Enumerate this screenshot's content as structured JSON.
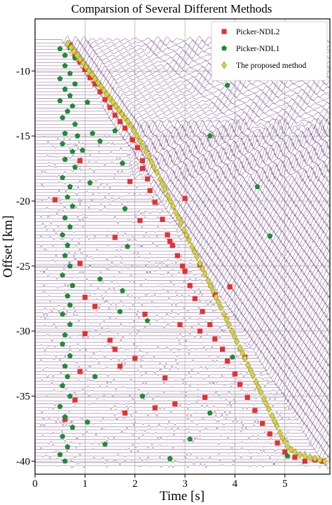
{
  "chart_data": {
    "type": "scatter",
    "title": "Comparsion of Several Different Methods",
    "xlabel": "Time [s]",
    "ylabel": "Offset [km]",
    "xlim": [
      0,
      5.9
    ],
    "ylim": [
      -41,
      -6
    ],
    "xticks": [
      0,
      1,
      2,
      3,
      4,
      5
    ],
    "yticks": [
      -10,
      -15,
      -20,
      -25,
      -30,
      -35,
      -40
    ],
    "grid": true,
    "legend_position": "top-right",
    "background": "seismic-traces",
    "colors": {
      "trace": "#6a3d7c",
      "ndl2": "#e53030",
      "ndl1": "#1f8a3a",
      "proposed": "#d9d23c",
      "proposed_edge": "#8a8a20"
    },
    "series": [
      {
        "name": "Picker-NDL2",
        "marker": "square",
        "points": [
          [
            0.7,
            -8.0
          ],
          [
            0.8,
            -8.7
          ],
          [
            0.9,
            -9.3
          ],
          [
            1.0,
            -9.9
          ],
          [
            1.1,
            -10.5
          ],
          [
            1.2,
            -11.0
          ],
          [
            1.3,
            -11.6
          ],
          [
            1.4,
            -12.2
          ],
          [
            1.5,
            -12.8
          ],
          [
            1.6,
            -13.4
          ],
          [
            1.7,
            -13.9
          ],
          [
            1.8,
            -14.4
          ],
          [
            1.95,
            -15.3
          ],
          [
            2.05,
            -15.9
          ],
          [
            2.15,
            -16.9
          ],
          [
            2.15,
            -17.5
          ],
          [
            2.25,
            -18.3
          ],
          [
            2.3,
            -19.2
          ],
          [
            2.4,
            -20.1
          ],
          [
            2.55,
            -21.4
          ],
          [
            2.65,
            -22.6
          ],
          [
            2.75,
            -23.4
          ],
          [
            2.85,
            -24.2
          ],
          [
            2.95,
            -25.0
          ],
          [
            3.0,
            -25.4
          ],
          [
            3.1,
            -26.5
          ],
          [
            3.2,
            -27.5
          ],
          [
            3.35,
            -28.5
          ],
          [
            3.5,
            -29.5
          ],
          [
            3.6,
            -30.6
          ],
          [
            3.75,
            -31.4
          ],
          [
            3.85,
            -32.3
          ],
          [
            4.0,
            -33.3
          ],
          [
            4.1,
            -34.1
          ],
          [
            4.25,
            -35.1
          ],
          [
            4.4,
            -36.1
          ],
          [
            4.55,
            -37.1
          ],
          [
            4.7,
            -37.9
          ],
          [
            4.85,
            -38.6
          ],
          [
            5.0,
            -39.3
          ],
          [
            5.2,
            -39.7
          ],
          [
            5.4,
            -40.0
          ],
          [
            5.6,
            -39.9
          ],
          [
            5.75,
            -40.0
          ],
          [
            0.4,
            -19.9
          ],
          [
            0.9,
            -16.9
          ],
          [
            2.1,
            -21.5
          ],
          [
            2.7,
            -23.1
          ],
          [
            3.3,
            -24.9
          ],
          [
            3.6,
            -27.2
          ],
          [
            1.6,
            -22.8
          ],
          [
            1.2,
            -28.1
          ],
          [
            1.0,
            -30.2
          ],
          [
            1.5,
            -30.7
          ],
          [
            1.6,
            -31.4
          ],
          [
            1.7,
            -32.7
          ],
          [
            2.0,
            -32.1
          ],
          [
            0.9,
            -33.1
          ],
          [
            2.6,
            -33.6
          ],
          [
            0.8,
            -35.3
          ],
          [
            2.8,
            -35.6
          ],
          [
            3.4,
            -35.1
          ],
          [
            2.4,
            -35.9
          ],
          [
            1.8,
            -36.3
          ],
          [
            1.0,
            -27.4
          ],
          [
            3.3,
            -30.0
          ],
          [
            2.9,
            -29.5
          ],
          [
            2.2,
            -28.7
          ],
          [
            3.0,
            -19.8
          ],
          [
            1.9,
            -18.5
          ],
          [
            0.6,
            -36.8
          ],
          [
            4.2,
            -32.0
          ],
          [
            3.9,
            -26.6
          ],
          [
            0.9,
            -24.8
          ]
        ]
      },
      {
        "name": "Picker-NDL1",
        "marker": "pentagon",
        "points": [
          [
            0.5,
            -8.3
          ],
          [
            0.7,
            -8.2
          ],
          [
            0.6,
            -8.8
          ],
          [
            0.8,
            -9.0
          ],
          [
            0.6,
            -9.6
          ],
          [
            0.7,
            -10.2
          ],
          [
            0.5,
            -10.6
          ],
          [
            0.8,
            -11.0
          ],
          [
            0.6,
            -11.4
          ],
          [
            0.7,
            -11.9
          ],
          [
            0.5,
            -12.3
          ],
          [
            0.75,
            -12.7
          ],
          [
            0.65,
            -13.1
          ],
          [
            0.55,
            -13.6
          ],
          [
            0.8,
            -14.1
          ],
          [
            0.6,
            -14.8
          ],
          [
            0.55,
            -15.6
          ],
          [
            0.75,
            -16.2
          ],
          [
            0.6,
            -16.8
          ],
          [
            0.8,
            -17.4
          ],
          [
            0.55,
            -18.2
          ],
          [
            0.7,
            -18.9
          ],
          [
            0.65,
            -19.7
          ],
          [
            0.75,
            -20.4
          ],
          [
            0.6,
            -21.3
          ],
          [
            0.7,
            -22.0
          ],
          [
            0.55,
            -22.6
          ],
          [
            0.65,
            -23.4
          ],
          [
            0.6,
            -24.2
          ],
          [
            0.7,
            -25.0
          ],
          [
            0.55,
            -25.7
          ],
          [
            0.75,
            -26.5
          ],
          [
            0.65,
            -27.3
          ],
          [
            0.7,
            -28.0
          ],
          [
            0.55,
            -28.7
          ],
          [
            0.7,
            -29.5
          ],
          [
            0.6,
            -30.3
          ],
          [
            0.55,
            -31.0
          ],
          [
            0.7,
            -31.9
          ],
          [
            0.6,
            -32.7
          ],
          [
            0.65,
            -33.5
          ],
          [
            0.55,
            -34.2
          ],
          [
            0.7,
            -35.0
          ],
          [
            0.5,
            -35.8
          ],
          [
            0.6,
            -36.6
          ],
          [
            0.75,
            -37.4
          ],
          [
            0.55,
            -38.1
          ],
          [
            0.65,
            -38.9
          ],
          [
            0.5,
            -39.5
          ],
          [
            0.6,
            -40.0
          ],
          [
            0.85,
            -15.0
          ],
          [
            0.95,
            -16.1
          ],
          [
            1.05,
            -12.4
          ],
          [
            1.15,
            -14.8
          ],
          [
            1.3,
            -15.4
          ],
          [
            1.1,
            -18.6
          ],
          [
            1.6,
            -14.6
          ],
          [
            1.75,
            -17.1
          ],
          [
            1.8,
            -20.6
          ],
          [
            1.85,
            -23.5
          ],
          [
            1.75,
            -26.9
          ],
          [
            1.7,
            -28.5
          ],
          [
            1.3,
            -26.0
          ],
          [
            1.2,
            -33.5
          ],
          [
            1.05,
            -37.0
          ],
          [
            1.4,
            -38.7
          ],
          [
            2.15,
            -35.0
          ],
          [
            2.7,
            -39.8
          ],
          [
            3.1,
            -38.3
          ],
          [
            3.5,
            -36.3
          ],
          [
            3.85,
            -11.1
          ],
          [
            3.5,
            -15.0
          ],
          [
            4.45,
            -18.9
          ],
          [
            4.7,
            -22.7
          ],
          [
            5.05,
            -39.6
          ],
          [
            3.95,
            -32.0
          ],
          [
            2.25,
            -29.2
          ]
        ]
      },
      {
        "name": "The proposed method",
        "marker": "diamond",
        "points": [
          [
            0.65,
            -7.9
          ],
          [
            0.72,
            -8.2
          ],
          [
            0.78,
            -8.5
          ],
          [
            0.84,
            -8.8
          ],
          [
            0.9,
            -9.1
          ],
          [
            0.96,
            -9.4
          ],
          [
            1.02,
            -9.7
          ],
          [
            1.08,
            -10.0
          ],
          [
            1.14,
            -10.3
          ],
          [
            1.2,
            -10.6
          ],
          [
            1.26,
            -10.9
          ],
          [
            1.32,
            -11.2
          ],
          [
            1.38,
            -11.5
          ],
          [
            1.44,
            -11.8
          ],
          [
            1.5,
            -12.1
          ],
          [
            1.56,
            -12.4
          ],
          [
            1.62,
            -12.7
          ],
          [
            1.68,
            -13.0
          ],
          [
            1.74,
            -13.3
          ],
          [
            1.8,
            -13.6
          ],
          [
            1.86,
            -13.9
          ],
          [
            1.92,
            -14.2
          ],
          [
            1.98,
            -14.6
          ],
          [
            2.04,
            -15.0
          ],
          [
            2.1,
            -15.4
          ],
          [
            2.16,
            -15.8
          ],
          [
            2.22,
            -16.2
          ],
          [
            2.28,
            -16.6
          ],
          [
            2.33,
            -17.0
          ],
          [
            2.38,
            -17.4
          ],
          [
            2.44,
            -17.8
          ],
          [
            2.5,
            -18.3
          ],
          [
            2.55,
            -18.7
          ],
          [
            2.6,
            -19.1
          ],
          [
            2.66,
            -19.6
          ],
          [
            2.71,
            -20.0
          ],
          [
            2.76,
            -20.4
          ],
          [
            2.82,
            -20.9
          ],
          [
            2.87,
            -21.3
          ],
          [
            2.92,
            -21.7
          ],
          [
            2.98,
            -22.2
          ],
          [
            3.03,
            -22.6
          ],
          [
            3.08,
            -23.0
          ],
          [
            3.14,
            -23.5
          ],
          [
            3.19,
            -23.9
          ],
          [
            3.24,
            -24.3
          ],
          [
            3.3,
            -24.8
          ],
          [
            3.35,
            -25.2
          ],
          [
            3.4,
            -25.6
          ],
          [
            3.46,
            -26.1
          ],
          [
            3.51,
            -26.5
          ],
          [
            3.56,
            -26.9
          ],
          [
            3.62,
            -27.4
          ],
          [
            3.67,
            -27.8
          ],
          [
            3.72,
            -28.2
          ],
          [
            3.78,
            -28.7
          ],
          [
            3.83,
            -29.1
          ],
          [
            3.88,
            -29.5
          ],
          [
            3.94,
            -30.0
          ],
          [
            3.99,
            -30.4
          ],
          [
            4.04,
            -30.8
          ],
          [
            4.1,
            -31.3
          ],
          [
            4.15,
            -31.7
          ],
          [
            4.2,
            -32.1
          ],
          [
            4.26,
            -32.6
          ],
          [
            4.31,
            -33.0
          ],
          [
            4.36,
            -33.4
          ],
          [
            4.42,
            -33.9
          ],
          [
            4.47,
            -34.3
          ],
          [
            4.52,
            -34.7
          ],
          [
            4.58,
            -35.2
          ],
          [
            4.63,
            -35.6
          ],
          [
            4.68,
            -36.0
          ],
          [
            4.74,
            -36.5
          ],
          [
            4.79,
            -36.9
          ],
          [
            4.84,
            -37.3
          ],
          [
            4.9,
            -37.8
          ],
          [
            4.95,
            -38.2
          ],
          [
            5.0,
            -38.5
          ],
          [
            5.06,
            -38.9
          ],
          [
            5.12,
            -39.1
          ],
          [
            5.2,
            -39.3
          ],
          [
            5.3,
            -39.5
          ],
          [
            5.4,
            -39.6
          ],
          [
            5.5,
            -39.7
          ],
          [
            5.6,
            -39.8
          ],
          [
            5.7,
            -39.9
          ],
          [
            5.8,
            -40.0
          ]
        ]
      }
    ]
  }
}
